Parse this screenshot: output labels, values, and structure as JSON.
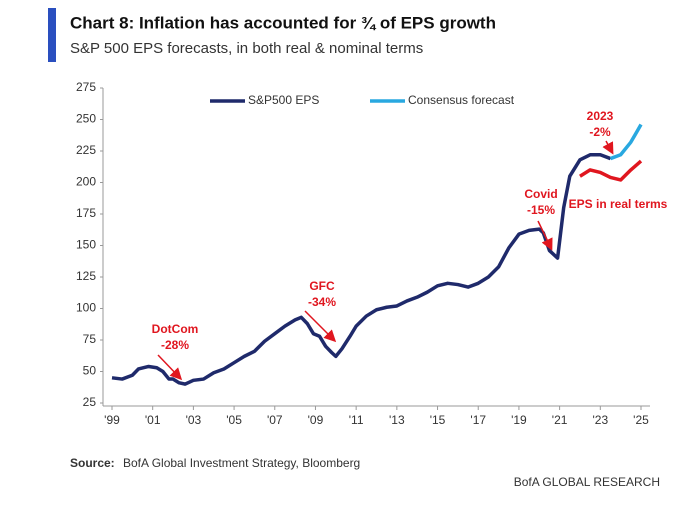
{
  "chart_data": {
    "type": "line",
    "title": "Chart 8: Inflation has accounted for ¾ of EPS growth",
    "subtitle": "S&P 500 EPS forecasts, in both real & nominal terms",
    "source_label": "Source:",
    "source": "BofA Global Investment Strategy, Bloomberg",
    "credit": "BofA GLOBAL RESEARCH",
    "xlim": [
      1999,
      2025
    ],
    "xticks": [
      {
        "value": 1999,
        "label": "'99"
      },
      {
        "value": 2001,
        "label": "'01"
      },
      {
        "value": 2003,
        "label": "'03"
      },
      {
        "value": 2005,
        "label": "'05"
      },
      {
        "value": 2007,
        "label": "'07"
      },
      {
        "value": 2009,
        "label": "'09"
      },
      {
        "value": 2011,
        "label": "'11"
      },
      {
        "value": 2013,
        "label": "'13"
      },
      {
        "value": 2015,
        "label": "'15"
      },
      {
        "value": 2017,
        "label": "'17"
      },
      {
        "value": 2019,
        "label": "'19"
      },
      {
        "value": 2021,
        "label": "'21"
      },
      {
        "value": 2023,
        "label": "'23"
      },
      {
        "value": 2025,
        "label": "'25"
      }
    ],
    "ylim": [
      25,
      275
    ],
    "yticks": [
      25,
      50,
      75,
      100,
      125,
      150,
      175,
      200,
      225,
      250,
      275
    ],
    "grid": false,
    "series": [
      {
        "name": "S&P500 EPS",
        "color": "#1f2a6b",
        "legend": true,
        "x": [
          1999.0,
          1999.5,
          2000.0,
          2000.3,
          2000.8,
          2001.2,
          2001.5,
          2001.8,
          2002.0,
          2002.3,
          2002.6,
          2003.0,
          2003.5,
          2004.0,
          2004.5,
          2005.0,
          2005.5,
          2006.0,
          2006.5,
          2007.0,
          2007.5,
          2008.0,
          2008.3,
          2008.6,
          2008.9,
          2009.2,
          2009.5,
          2009.8,
          2010.0,
          2010.3,
          2010.7,
          2011.0,
          2011.5,
          2012.0,
          2012.5,
          2013.0,
          2013.5,
          2014.0,
          2014.5,
          2015.0,
          2015.5,
          2016.0,
          2016.5,
          2017.0,
          2017.5,
          2018.0,
          2018.5,
          2019.0,
          2019.5,
          2020.0,
          2020.2,
          2020.5,
          2020.9,
          2021.2,
          2021.5,
          2022.0,
          2022.5,
          2023.0,
          2023.5
        ],
        "values": [
          45,
          44,
          47,
          52,
          54,
          53,
          50,
          44,
          44,
          41,
          40,
          43,
          44,
          49,
          52,
          57,
          62,
          66,
          74,
          80,
          86,
          91,
          93,
          88,
          80,
          78,
          70,
          65,
          62,
          68,
          78,
          86,
          94,
          99,
          101,
          102,
          106,
          109,
          113,
          118,
          120,
          119,
          117,
          120,
          125,
          133,
          148,
          159,
          162,
          163,
          160,
          146,
          140,
          180,
          205,
          218,
          222,
          222,
          219
        ]
      },
      {
        "name": "Consensus forecast",
        "color": "#29a8e0",
        "legend": true,
        "x": [
          2023.5,
          2024.0,
          2024.5,
          2025.0
        ],
        "values": [
          219,
          222,
          232,
          246
        ]
      },
      {
        "name": "EPS in real terms",
        "color": "#e0161f",
        "legend": false,
        "x": [
          2022.0,
          2022.5,
          2023.0,
          2023.5,
          2024.0,
          2024.5,
          2025.0
        ],
        "values": [
          205,
          210,
          208,
          204,
          202,
          210,
          217
        ]
      }
    ],
    "annotations": [
      {
        "lines": [
          "DotCom",
          "-28%"
        ]
      },
      {
        "lines": [
          "GFC",
          "-34%"
        ]
      },
      {
        "lines": [
          "Covid",
          "-15%"
        ]
      },
      {
        "lines": [
          "2023",
          "-2%"
        ]
      }
    ]
  }
}
